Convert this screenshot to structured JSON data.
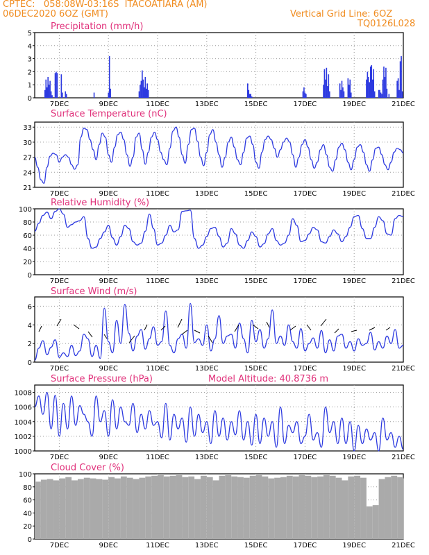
{
  "header": {
    "line1_left": "CPTEC:   058:08W-03:16S  ITACOATIARA (AM)",
    "line2_left": "06DEC2020 6OZ (GMT)",
    "line2_right": "Vertical Grid Line: 6OZ",
    "line3_right": "TQ0126L028"
  },
  "colors": {
    "header": "#f08c20",
    "panel_title": "#e0307a",
    "series": "#2d3ae0",
    "cloud": "#aaaaaa"
  },
  "chart_data": [
    {
      "type": "bar",
      "title": "Precipitation (mm/h)",
      "ylim": [
        0,
        5
      ],
      "yticks": [
        "0",
        "1",
        "2",
        "3",
        "4",
        "5"
      ],
      "xlim_hours": [
        0,
        360
      ],
      "xticks": [
        "7DEC",
        "9DEC",
        "11DEC",
        "13DEC",
        "15DEC",
        "17DEC",
        "19DEC",
        "21DEC"
      ],
      "x_hours": [
        10,
        11,
        12,
        13,
        14,
        15,
        16,
        17,
        20,
        21,
        22,
        26,
        27,
        30,
        31,
        58,
        72,
        73,
        74,
        102,
        103,
        104,
        105,
        106,
        107,
        108,
        109,
        110,
        111,
        208,
        209,
        210,
        211,
        212,
        262,
        263,
        264,
        265,
        282,
        283,
        284,
        285,
        286,
        287,
        288,
        298,
        299,
        300,
        301,
        302,
        306,
        307,
        308,
        309,
        324,
        325,
        326,
        327,
        328,
        329,
        330,
        331,
        332,
        336,
        337,
        338,
        339,
        340,
        341,
        342,
        343,
        344,
        346,
        354,
        355,
        356,
        357,
        358,
        359
      ],
      "values": [
        0.6,
        1.4,
        0.8,
        1.6,
        1.0,
        1.3,
        0.5,
        0.2,
        1.9,
        2.0,
        1.9,
        1.8,
        0.4,
        0.5,
        0.3,
        0.4,
        0.4,
        3.2,
        0.7,
        0.5,
        1.0,
        1.3,
        2.1,
        1.4,
        0.8,
        1.6,
        0.7,
        1.1,
        0.6,
        1.1,
        0.6,
        0.3,
        0.3,
        0.1,
        0.5,
        0.8,
        0.4,
        0.3,
        1.0,
        2.2,
        1.4,
        2.3,
        0.9,
        1.8,
        0.5,
        1.1,
        0.6,
        1.3,
        0.8,
        0.5,
        1.5,
        1.0,
        1.4,
        0.4,
        1.4,
        2.0,
        1.6,
        1.2,
        2.4,
        2.5,
        1.4,
        2.2,
        0.5,
        0.6,
        0.6,
        0.4,
        0.3,
        1.4,
        2.4,
        1.6,
        2.3,
        0.7,
        0.3,
        1.3,
        1.5,
        0.6,
        2.8,
        3.2,
        0.5
      ]
    },
    {
      "type": "line",
      "title": "Surface Temperature (nC)",
      "ylim": [
        21,
        34
      ],
      "yticks": [
        "21",
        "24",
        "27",
        "30",
        "33"
      ],
      "xlim_hours": [
        0,
        360
      ],
      "xticks": [
        "7DEC",
        "9DEC",
        "11DEC",
        "13DEC",
        "15DEC",
        "17DEC",
        "19DEC",
        "21DEC"
      ],
      "x_hours": [
        0,
        3,
        6,
        9,
        12,
        15,
        18,
        21,
        24,
        27,
        30,
        33,
        36,
        39,
        42,
        45,
        48,
        51,
        54,
        57,
        60,
        63,
        66,
        69,
        72,
        75,
        78,
        81,
        84,
        87,
        90,
        93,
        96,
        99,
        102,
        105,
        108,
        111,
        114,
        117,
        120,
        123,
        126,
        129,
        132,
        135,
        138,
        141,
        144,
        147,
        150,
        153,
        156,
        159,
        162,
        165,
        168,
        171,
        174,
        177,
        180,
        183,
        186,
        189,
        192,
        195,
        198,
        201,
        204,
        207,
        210,
        213,
        216,
        219,
        222,
        225,
        228,
        231,
        234,
        237,
        240,
        243,
        246,
        249,
        252,
        255,
        258,
        261,
        264,
        267,
        270,
        273,
        276,
        279,
        282,
        285,
        288,
        291,
        294,
        297,
        300,
        303,
        306,
        309,
        312,
        315,
        318,
        321,
        324,
        327,
        330,
        333,
        336,
        339,
        342,
        345,
        348,
        351,
        354,
        357,
        360
      ],
      "values": [
        27,
        25,
        22.5,
        21.8,
        25,
        27.2,
        27.8,
        27.5,
        26,
        27,
        27.5,
        27,
        25.5,
        24.6,
        25.5,
        31,
        32.8,
        32.5,
        30.5,
        28.5,
        26.5,
        29.5,
        31.8,
        31,
        27.5,
        26,
        29,
        31.5,
        32,
        30.5,
        27.5,
        25.2,
        27,
        31,
        31.8,
        28.5,
        25.6,
        28,
        31,
        32,
        30.5,
        28,
        26.5,
        25.5,
        28.8,
        32.2,
        33,
        31,
        27.5,
        25.8,
        29.5,
        32.5,
        32.8,
        30.2,
        27,
        25.3,
        28,
        31.5,
        32.5,
        30,
        27.5,
        25,
        27,
        30,
        31,
        29,
        26.5,
        25.5,
        28,
        30.8,
        31.2,
        29.5,
        26,
        24.8,
        28,
        30.5,
        31.2,
        30.5,
        28.8,
        27,
        28.5,
        30,
        30.8,
        30,
        27.5,
        25,
        27,
        29.5,
        30.5,
        29,
        26.5,
        24.8,
        26,
        28.5,
        29.5,
        27.5,
        25,
        24.2,
        26.5,
        29,
        29.8,
        28.5,
        26,
        24.5,
        26.5,
        29,
        29.5,
        28,
        25.5,
        24.2,
        26.5,
        28.8,
        29,
        27.5,
        25.5,
        24.5,
        26,
        28,
        28.8,
        28.5,
        27.8
      ]
    },
    {
      "type": "line",
      "title": "Relative Humidity (%)",
      "ylim": [
        0,
        100
      ],
      "yticks": [
        "0",
        "20",
        "40",
        "60",
        "80",
        "100"
      ],
      "xlim_hours": [
        0,
        360
      ],
      "xticks": [
        "7DEC",
        "9DEC",
        "11DEC",
        "13DEC",
        "15DEC",
        "17DEC",
        "19DEC",
        "21DEC"
      ],
      "x_hours": [
        0,
        4,
        8,
        12,
        16,
        20,
        24,
        28,
        32,
        36,
        40,
        44,
        48,
        52,
        56,
        60,
        64,
        68,
        72,
        76,
        80,
        84,
        88,
        92,
        96,
        100,
        104,
        108,
        112,
        116,
        120,
        124,
        128,
        132,
        136,
        140,
        144,
        148,
        152,
        156,
        160,
        164,
        168,
        172,
        176,
        180,
        184,
        188,
        192,
        196,
        200,
        204,
        208,
        212,
        216,
        220,
        224,
        228,
        232,
        236,
        240,
        244,
        248,
        252,
        256,
        260,
        264,
        268,
        272,
        276,
        280,
        284,
        288,
        292,
        296,
        300,
        304,
        308,
        312,
        316,
        320,
        324,
        328,
        332,
        336,
        340,
        344,
        348,
        352,
        356,
        360
      ],
      "values": [
        66,
        78,
        90,
        95,
        85,
        96,
        100,
        92,
        72,
        76,
        80,
        82,
        88,
        55,
        40,
        42,
        55,
        65,
        75,
        56,
        45,
        58,
        75,
        70,
        50,
        45,
        48,
        66,
        92,
        70,
        45,
        48,
        60,
        75,
        65,
        68,
        96,
        97,
        98,
        55,
        40,
        45,
        58,
        70,
        72,
        58,
        42,
        48,
        70,
        62,
        45,
        40,
        52,
        65,
        58,
        42,
        47,
        62,
        70,
        52,
        45,
        48,
        60,
        85,
        75,
        50,
        52,
        62,
        72,
        68,
        50,
        48,
        58,
        68,
        62,
        50,
        58,
        72,
        88,
        90,
        70,
        55,
        55,
        72,
        88,
        82,
        62,
        60,
        85,
        90,
        88
      ]
    },
    {
      "type": "line",
      "title": "Surface Wind (m/s)",
      "ylim": [
        0,
        7
      ],
      "yticks": [
        "0",
        "2",
        "4",
        "6"
      ],
      "xlim_hours": [
        0,
        360
      ],
      "xticks": [
        "7DEC",
        "9DEC",
        "11DEC",
        "13DEC",
        "15DEC",
        "17DEC",
        "19DEC",
        "21DEC"
      ],
      "x_hours": [
        0,
        4,
        8,
        12,
        16,
        20,
        24,
        28,
        32,
        36,
        40,
        44,
        48,
        52,
        56,
        60,
        64,
        68,
        72,
        76,
        80,
        84,
        88,
        92,
        96,
        100,
        104,
        108,
        112,
        116,
        120,
        124,
        128,
        132,
        136,
        140,
        144,
        148,
        152,
        156,
        160,
        164,
        168,
        172,
        176,
        180,
        184,
        188,
        192,
        196,
        200,
        204,
        208,
        212,
        216,
        220,
        224,
        228,
        232,
        236,
        240,
        244,
        248,
        252,
        256,
        260,
        264,
        268,
        272,
        276,
        280,
        284,
        288,
        292,
        296,
        300,
        304,
        308,
        312,
        316,
        320,
        324,
        328,
        332,
        336,
        340,
        344,
        348,
        352,
        356,
        360
      ],
      "values": [
        0.2,
        1.5,
        2.3,
        0.8,
        1.6,
        2.4,
        0.5,
        1.0,
        0.6,
        1.8,
        0.7,
        1.2,
        3.0,
        2.5,
        0.6,
        1.8,
        0.4,
        5.8,
        2.2,
        1.0,
        4.5,
        2.0,
        6.2,
        3.1,
        1.2,
        2.8,
        3.5,
        1.4,
        2.5,
        3.8,
        1.8,
        2.2,
        5.5,
        1.8,
        1.0,
        2.5,
        3.0,
        1.5,
        6.3,
        2.1,
        2.5,
        1.8,
        4.0,
        1.2,
        2.5,
        5.0,
        2.0,
        2.8,
        3.0,
        1.5,
        4.2,
        2.5,
        1.0,
        4.5,
        2.2,
        3.5,
        1.5,
        2.5,
        5.6,
        2.0,
        2.8,
        1.8,
        4.0,
        2.2,
        1.5,
        3.6,
        1.2,
        2.0,
        2.6,
        1.5,
        3.4,
        1.0,
        2.4,
        1.2,
        2.8,
        3.0,
        1.5,
        2.2,
        1.2,
        2.5,
        1.8,
        2.0,
        3.2,
        1.3,
        2.2,
        1.5,
        2.8,
        2.0,
        3.5,
        1.5,
        1.8
      ]
    },
    {
      "type": "line",
      "title": "Surface Pressure (hPa)",
      "subtitle": "Model Altitude: 40.8736 m",
      "ylim": [
        1000,
        1009
      ],
      "yticks": [
        "1000",
        "1002",
        "1004",
        "1006",
        "1008"
      ],
      "xlim_hours": [
        0,
        360
      ],
      "xticks": [
        "7DEC",
        "9DEC",
        "11DEC",
        "13DEC",
        "15DEC",
        "17DEC",
        "19DEC",
        "21DEC"
      ],
      "x_hours": [
        0,
        4,
        8,
        12,
        16,
        20,
        24,
        28,
        32,
        36,
        40,
        44,
        48,
        52,
        56,
        60,
        64,
        68,
        72,
        76,
        80,
        84,
        88,
        92,
        96,
        100,
        104,
        108,
        112,
        116,
        120,
        124,
        128,
        132,
        136,
        140,
        144,
        148,
        152,
        156,
        160,
        164,
        168,
        172,
        176,
        180,
        184,
        188,
        192,
        196,
        200,
        204,
        208,
        212,
        216,
        220,
        224,
        228,
        232,
        236,
        240,
        244,
        248,
        252,
        256,
        260,
        264,
        268,
        272,
        276,
        280,
        284,
        288,
        292,
        296,
        300,
        304,
        308,
        312,
        316,
        320,
        324,
        328,
        332,
        336,
        340,
        344,
        348,
        352,
        356,
        360
      ],
      "values": [
        1006,
        1007.5,
        1005,
        1008,
        1003,
        1007.6,
        1002,
        1006.5,
        1003,
        1007.5,
        1003.5,
        1006.2,
        1005,
        1004,
        1002,
        1007.5,
        1004,
        1005.5,
        1002,
        1007,
        1003,
        1006,
        1004,
        1003.5,
        1006.5,
        1002.5,
        1005,
        1003,
        1005.5,
        1003.5,
        1004,
        1001.8,
        1006.5,
        1001.5,
        1005,
        1003,
        1004.5,
        1001.2,
        1006,
        1002,
        1005,
        1002.5,
        1004,
        1001,
        1005.5,
        1002,
        1004.5,
        1001.5,
        1004,
        1002.2,
        1005.5,
        1001.5,
        1004,
        1000.8,
        1005,
        1001,
        1004.5,
        1002,
        1004,
        1000.5,
        1006,
        1001,
        1003.5,
        1002.5,
        1004,
        1001,
        1002,
        1005,
        1001.5,
        1002.5,
        1000.5,
        1006,
        1002.5,
        1004,
        1001,
        1004.5,
        1001,
        1004,
        1000,
        1003.5,
        1001,
        1003,
        1001.5,
        1002.5,
        1000,
        1004.5,
        1001.5,
        1002.5,
        1000.5,
        1002,
        1000.2
      ]
    },
    {
      "type": "area",
      "title": "Cloud Cover (%)",
      "ylim": [
        0,
        100
      ],
      "yticks": [
        "0",
        "20",
        "40",
        "60",
        "80",
        "100"
      ],
      "xlim_hours": [
        0,
        360
      ],
      "xticks": [
        "7DEC",
        "9DEC",
        "11DEC",
        "13DEC",
        "15DEC",
        "17DEC",
        "19DEC",
        "21DEC"
      ],
      "x_hours": [
        0,
        6,
        12,
        18,
        24,
        30,
        36,
        42,
        48,
        54,
        60,
        66,
        72,
        78,
        84,
        90,
        96,
        102,
        108,
        114,
        120,
        126,
        132,
        138,
        144,
        150,
        156,
        162,
        168,
        174,
        180,
        186,
        192,
        198,
        204,
        210,
        216,
        222,
        228,
        234,
        240,
        246,
        252,
        258,
        264,
        270,
        276,
        282,
        288,
        294,
        300,
        306,
        312,
        318,
        324,
        330,
        336,
        342,
        348,
        354,
        360
      ],
      "values": [
        88,
        91,
        92,
        90,
        93,
        95,
        90,
        92,
        94,
        93,
        92,
        91,
        95,
        93,
        96,
        94,
        92,
        94,
        96,
        97,
        98,
        96,
        97,
        98,
        95,
        96,
        92,
        97,
        95,
        90,
        97,
        98,
        96,
        95,
        94,
        97,
        98,
        96,
        93,
        94,
        95,
        97,
        96,
        98,
        97,
        95,
        96,
        98,
        97,
        94,
        90,
        96,
        97,
        94,
        50,
        52,
        92,
        95,
        97,
        95,
        93
      ]
    }
  ]
}
